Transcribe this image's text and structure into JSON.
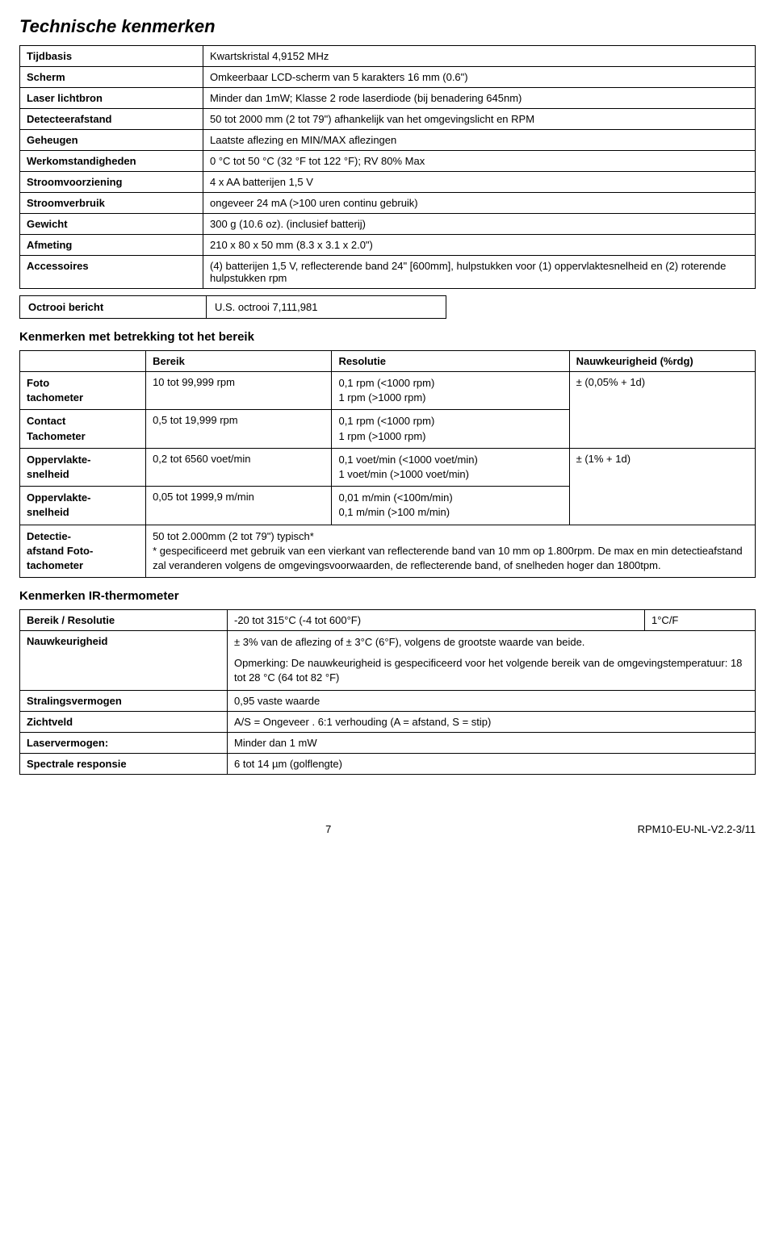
{
  "title": "Technische kenmerken",
  "specs": [
    {
      "label": "Tijdbasis",
      "value": "Kwartskristal 4,9152 MHz"
    },
    {
      "label": "Scherm",
      "value": "Omkeerbaar LCD-scherm van 5 karakters 16 mm (0.6\")"
    },
    {
      "label": "Laser lichtbron",
      "value": "Minder dan 1mW; Klasse 2 rode laserdiode (bij benadering 645nm)"
    },
    {
      "label": "Detecteerafstand",
      "value": "50 tot 2000 mm (2 tot 79\") afhankelijk van het omgevingslicht en RPM"
    },
    {
      "label": "Geheugen",
      "value": "Laatste aflezing en MIN/MAX aflezingen"
    },
    {
      "label": "Werkomstandigheden",
      "value": "0 °C tot 50 °C (32 °F tot 122 °F); RV 80% Max"
    },
    {
      "label": "Stroomvoorziening",
      "value": "4 x AA batterijen 1,5 V"
    },
    {
      "label": "Stroomverbruik",
      "value": "ongeveer 24 mA (>100 uren continu gebruik)"
    },
    {
      "label": "Gewicht",
      "value": "300 g (10.6 oz). (inclusief batterij)"
    },
    {
      "label": "Afmeting",
      "value": "210 x 80 x 50 mm (8.3 x 3.1 x 2.0\")"
    },
    {
      "label": "Accessoires",
      "value": "(4) batterijen 1,5 V, reflecterende band 24\" [600mm], hulpstukken voor (1) oppervlaktesnelheid en (2) roterende hulpstukken rpm"
    }
  ],
  "patent": {
    "label": "Octrooi bericht",
    "value": "U.S. octrooi 7,111,981"
  },
  "rangeTitle": "Kenmerken met betrekking tot het bereik",
  "rangeHeaders": {
    "bereik": "Bereik",
    "resolutie": "Resolutie",
    "acc": "Nauwkeurigheid (%rdg)"
  },
  "rangeRows": {
    "foto": {
      "label1": "Foto",
      "label2": "tachometer",
      "bereik": "10 tot 99,999 rpm",
      "res1": "0,1 rpm (<1000 rpm)",
      "res2": "1 rpm (>1000 rpm)"
    },
    "contact": {
      "label1": "Contact",
      "label2": "Tachometer",
      "bereik": "0,5 tot 19,999 rpm",
      "res1": "0,1 rpm (<1000 rpm)",
      "res2": "1 rpm (>1000 rpm)"
    },
    "surf1": {
      "label1": "Oppervlakte-",
      "label2": "snelheid",
      "bereik": "0,2 tot 6560 voet/min",
      "res1": "0,1 voet/min (<1000 voet/min)",
      "res2": "1 voet/min (>1000 voet/min)"
    },
    "surf2": {
      "label1": "Oppervlakte-",
      "label2": "snelheid",
      "bereik": "0,05 tot 1999,9 m/min",
      "res1": "0,01 m/min (<100m/min)",
      "res2": "0,1 m/min (>100 m/min)"
    },
    "detect": {
      "label1": "Detectie-",
      "label2": "afstand Foto-",
      "label3": "tachometer",
      "text": "50 tot 2.000mm (2 tot 79\") typisch*\n* gespecificeerd met gebruik van een vierkant van reflecterende band van 10 mm op 1.800rpm. De max en min detectieafstand zal veranderen volgens de omgevingsvoorwaarden, de reflecterende band, of snelheden hoger dan 1800tpm."
    }
  },
  "acc1": "± (0,05% + 1d)",
  "acc2": "± (1% + 1d)",
  "irTitle": "Kenmerken IR-thermometer",
  "ir": {
    "row1": {
      "label": "Bereik / Resolutie",
      "v1": "-20 tot 315°C (-4 tot 600°F)",
      "v2": "1°C/F"
    },
    "row2": {
      "label": "Nauwkeurigheid",
      "v1": "± 3% van de aflezing of ± 3°C (6°F), volgens de grootste waarde van beide.",
      "v2": "Opmerking: De nauwkeurigheid is gespecificeerd voor het volgende bereik van de omgevingstemperatuur: 18 tot 28 °C (64 tot 82 °F)"
    },
    "row3": {
      "label": "Stralingsvermogen",
      "v": "0,95 vaste waarde"
    },
    "row4": {
      "label": "Zichtveld",
      "v": "A/S = Ongeveer . 6:1 verhouding (A = afstand, S = stip)"
    },
    "row5": {
      "label": "Laservermogen:",
      "v": "Minder dan 1 mW"
    },
    "row6": {
      "label": "Spectrale responsie",
      "v": "6 tot 14 µm (golflengte)"
    }
  },
  "footer": {
    "page": "7",
    "doc": "RPM10-EU-NL-V2.2-3/11"
  }
}
